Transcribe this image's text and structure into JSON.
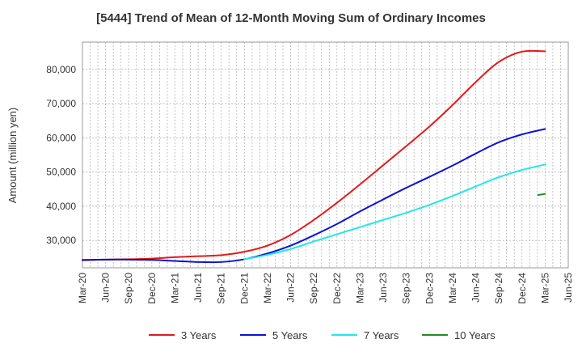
{
  "chart_data": {
    "type": "line",
    "title": "[5444]  Trend of Mean of 12-Month Moving Sum of Ordinary Incomes",
    "xlabel": "",
    "ylabel": "Amount (million yen)",
    "ylim": [
      22000,
      88000
    ],
    "yticks": [
      30000,
      40000,
      50000,
      60000,
      70000,
      80000
    ],
    "ytick_labels": [
      "30,000",
      "40,000",
      "50,000",
      "60,000",
      "70,000",
      "80,000"
    ],
    "x_categories": [
      "Mar-20",
      "Jun-20",
      "Sep-20",
      "Dec-20",
      "Mar-21",
      "Jun-21",
      "Sep-21",
      "Dec-21",
      "Mar-22",
      "Jun-22",
      "Sep-22",
      "Dec-22",
      "Mar-23",
      "Jun-23",
      "Sep-23",
      "Dec-23",
      "Mar-24",
      "Jun-24",
      "Sep-24",
      "Dec-24",
      "Mar-25",
      "Jun-25"
    ],
    "grid": true,
    "legend_position": "bottom",
    "series": [
      {
        "name": "3 Years",
        "color": "#e31a1c",
        "points": [
          [
            0,
            24200
          ],
          [
            1,
            24400
          ],
          [
            2,
            24500
          ],
          [
            3,
            24700
          ],
          [
            4,
            25100
          ],
          [
            5,
            25400
          ],
          [
            6,
            25700
          ],
          [
            7,
            26700
          ],
          [
            8,
            28500
          ],
          [
            9,
            31600
          ],
          [
            10,
            36000
          ],
          [
            11,
            41000
          ],
          [
            12,
            46400
          ],
          [
            13,
            52000
          ],
          [
            14,
            57600
          ],
          [
            15,
            63300
          ],
          [
            16,
            69600
          ],
          [
            17,
            76300
          ],
          [
            18,
            82200
          ],
          [
            19,
            85200
          ],
          [
            20,
            85300
          ]
        ]
      },
      {
        "name": "5 Years",
        "color": "#0a14d2",
        "points": [
          [
            0,
            24300
          ],
          [
            1,
            24400
          ],
          [
            2,
            24400
          ],
          [
            3,
            24300
          ],
          [
            4,
            24000
          ],
          [
            5,
            23700
          ],
          [
            6,
            23700
          ],
          [
            7,
            24500
          ],
          [
            8,
            26200
          ],
          [
            9,
            28500
          ],
          [
            10,
            31500
          ],
          [
            11,
            34800
          ],
          [
            12,
            38500
          ],
          [
            13,
            42000
          ],
          [
            14,
            45400
          ],
          [
            15,
            48600
          ],
          [
            16,
            51900
          ],
          [
            17,
            55400
          ],
          [
            18,
            58700
          ],
          [
            19,
            61000
          ],
          [
            20,
            62600
          ]
        ]
      },
      {
        "name": "7 Years",
        "color": "#22e6ea",
        "points": [
          [
            7,
            24500
          ],
          [
            8,
            25800
          ],
          [
            9,
            27500
          ],
          [
            10,
            29700
          ],
          [
            11,
            31800
          ],
          [
            12,
            33900
          ],
          [
            13,
            36000
          ],
          [
            14,
            38100
          ],
          [
            15,
            40400
          ],
          [
            16,
            43000
          ],
          [
            17,
            45800
          ],
          [
            18,
            48500
          ],
          [
            19,
            50600
          ],
          [
            20,
            52200
          ]
        ]
      },
      {
        "name": "10 Years",
        "color": "#228b22",
        "points": [
          [
            19.7,
            43300
          ],
          [
            20,
            43600
          ]
        ]
      }
    ]
  }
}
